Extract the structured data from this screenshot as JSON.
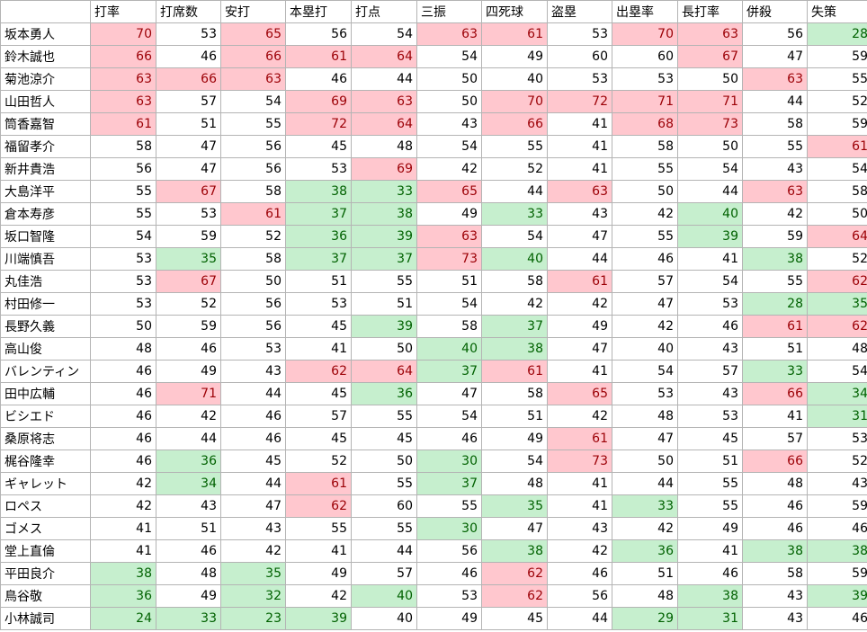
{
  "headers": [
    "",
    "打率",
    "打席数",
    "安打",
    "本塁打",
    "打点",
    "三振",
    "四死球",
    "盗塁",
    "出塁率",
    "長打率",
    "併殺",
    "失策"
  ],
  "colors": {
    "high_fill": "#ffc7ce",
    "high_text": "#9c0006",
    "low_fill": "#c6efce",
    "low_text": "#006100"
  },
  "rows": [
    {
      "name": "坂本勇人",
      "values": [
        70,
        53,
        65,
        56,
        54,
        63,
        61,
        53,
        70,
        63,
        56,
        28
      ],
      "hl": [
        "p",
        "",
        "p",
        "",
        "",
        "p",
        "p",
        "",
        "p",
        "p",
        "",
        "g"
      ]
    },
    {
      "name": "鈴木誠也",
      "values": [
        66,
        46,
        66,
        61,
        64,
        54,
        49,
        60,
        60,
        67,
        47,
        59
      ],
      "hl": [
        "p",
        "",
        "p",
        "p",
        "p",
        "",
        "",
        "",
        "",
        "p",
        "",
        ""
      ]
    },
    {
      "name": "菊池涼介",
      "values": [
        63,
        66,
        63,
        46,
        44,
        50,
        40,
        53,
        53,
        50,
        63,
        55
      ],
      "hl": [
        "p",
        "p",
        "p",
        "",
        "",
        "",
        "",
        "",
        "",
        "",
        "p",
        ""
      ]
    },
    {
      "name": "山田哲人",
      "values": [
        63,
        57,
        54,
        69,
        63,
        50,
        70,
        72,
        71,
        71,
        44,
        52
      ],
      "hl": [
        "p",
        "",
        "",
        "p",
        "p",
        "",
        "p",
        "p",
        "p",
        "p",
        "",
        ""
      ]
    },
    {
      "name": "筒香嘉智",
      "values": [
        61,
        51,
        55,
        72,
        64,
        43,
        66,
        41,
        68,
        73,
        58,
        59
      ],
      "hl": [
        "p",
        "",
        "",
        "p",
        "p",
        "",
        "p",
        "",
        "p",
        "p",
        "",
        ""
      ]
    },
    {
      "name": "福留孝介",
      "values": [
        58,
        47,
        56,
        45,
        48,
        54,
        55,
        41,
        58,
        50,
        55,
        61
      ],
      "hl": [
        "",
        "",
        "",
        "",
        "",
        "",
        "",
        "",
        "",
        "",
        "",
        "p"
      ]
    },
    {
      "name": "新井貴浩",
      "values": [
        56,
        47,
        56,
        53,
        69,
        42,
        52,
        41,
        55,
        54,
        43,
        54
      ],
      "hl": [
        "",
        "",
        "",
        "",
        "p",
        "",
        "",
        "",
        "",
        "",
        "",
        ""
      ]
    },
    {
      "name": "大島洋平",
      "values": [
        55,
        67,
        58,
        38,
        33,
        65,
        44,
        63,
        50,
        44,
        63,
        58
      ],
      "hl": [
        "",
        "p",
        "",
        "g",
        "g",
        "p",
        "",
        "p",
        "",
        "",
        "p",
        ""
      ]
    },
    {
      "name": "倉本寿彦",
      "values": [
        55,
        53,
        61,
        37,
        38,
        49,
        33,
        43,
        42,
        40,
        42,
        50
      ],
      "hl": [
        "",
        "",
        "p",
        "g",
        "g",
        "",
        "g",
        "",
        "",
        "g",
        "",
        ""
      ]
    },
    {
      "name": "坂口智隆",
      "values": [
        54,
        59,
        52,
        36,
        39,
        63,
        54,
        47,
        55,
        39,
        59,
        64
      ],
      "hl": [
        "",
        "",
        "",
        "g",
        "g",
        "p",
        "",
        "",
        "",
        "g",
        "",
        "p"
      ]
    },
    {
      "name": "川端慎吾",
      "values": [
        53,
        35,
        58,
        37,
        37,
        73,
        40,
        44,
        46,
        41,
        38,
        52
      ],
      "hl": [
        "",
        "g",
        "",
        "g",
        "g",
        "p",
        "g",
        "",
        "",
        "",
        "g",
        ""
      ]
    },
    {
      "name": "丸佳浩",
      "values": [
        53,
        67,
        50,
        51,
        55,
        51,
        58,
        61,
        57,
        54,
        55,
        62
      ],
      "hl": [
        "",
        "p",
        "",
        "",
        "",
        "",
        "",
        "p",
        "",
        "",
        "",
        "p"
      ]
    },
    {
      "name": "村田修一",
      "values": [
        53,
        52,
        56,
        53,
        51,
        54,
        42,
        42,
        47,
        53,
        28,
        35
      ],
      "hl": [
        "",
        "",
        "",
        "",
        "",
        "",
        "",
        "",
        "",
        "",
        "g",
        "g"
      ]
    },
    {
      "name": "長野久義",
      "values": [
        50,
        59,
        56,
        45,
        39,
        58,
        37,
        49,
        42,
        46,
        61,
        62
      ],
      "hl": [
        "",
        "",
        "",
        "",
        "g",
        "",
        "g",
        "",
        "",
        "",
        "p",
        "p"
      ]
    },
    {
      "name": "高山俊",
      "values": [
        48,
        46,
        53,
        41,
        50,
        40,
        38,
        47,
        40,
        43,
        51,
        48
      ],
      "hl": [
        "",
        "",
        "",
        "",
        "",
        "g",
        "g",
        "",
        "",
        "",
        "",
        ""
      ]
    },
    {
      "name": "バレンティン",
      "values": [
        46,
        49,
        43,
        62,
        64,
        37,
        61,
        41,
        54,
        57,
        33,
        54
      ],
      "hl": [
        "",
        "",
        "",
        "p",
        "p",
        "g",
        "p",
        "",
        "",
        "",
        "g",
        ""
      ]
    },
    {
      "name": "田中広輔",
      "values": [
        46,
        71,
        44,
        45,
        36,
        47,
        58,
        65,
        53,
        43,
        66,
        34
      ],
      "hl": [
        "",
        "p",
        "",
        "",
        "g",
        "",
        "",
        "p",
        "",
        "",
        "p",
        "g"
      ]
    },
    {
      "name": "ビシエド",
      "values": [
        46,
        42,
        46,
        57,
        55,
        54,
        51,
        42,
        48,
        53,
        41,
        31
      ],
      "hl": [
        "",
        "",
        "",
        "",
        "",
        "",
        "",
        "",
        "",
        "",
        "",
        "g"
      ]
    },
    {
      "name": "桑原将志",
      "values": [
        46,
        44,
        46,
        45,
        45,
        46,
        49,
        61,
        47,
        45,
        57,
        53
      ],
      "hl": [
        "",
        "",
        "",
        "",
        "",
        "",
        "",
        "p",
        "",
        "",
        "",
        ""
      ]
    },
    {
      "name": "梶谷隆幸",
      "values": [
        46,
        36,
        45,
        52,
        50,
        30,
        54,
        73,
        50,
        51,
        66,
        52
      ],
      "hl": [
        "",
        "g",
        "",
        "",
        "",
        "g",
        "",
        "p",
        "",
        "",
        "p",
        ""
      ]
    },
    {
      "name": "ギャレット",
      "values": [
        42,
        34,
        44,
        61,
        55,
        37,
        48,
        41,
        44,
        55,
        48,
        43
      ],
      "hl": [
        "",
        "g",
        "",
        "p",
        "",
        "g",
        "",
        "",
        "",
        "",
        "",
        ""
      ]
    },
    {
      "name": "ロペス",
      "values": [
        42,
        43,
        47,
        62,
        60,
        55,
        35,
        41,
        33,
        55,
        46,
        59
      ],
      "hl": [
        "",
        "",
        "",
        "p",
        "",
        "",
        "g",
        "",
        "g",
        "",
        "",
        ""
      ]
    },
    {
      "name": "ゴメス",
      "values": [
        41,
        51,
        43,
        55,
        55,
        30,
        47,
        43,
        42,
        49,
        46,
        46
      ],
      "hl": [
        "",
        "",
        "",
        "",
        "",
        "g",
        "",
        "",
        "",
        "",
        "",
        ""
      ]
    },
    {
      "name": "堂上直倫",
      "values": [
        41,
        46,
        42,
        41,
        44,
        56,
        38,
        42,
        36,
        41,
        38,
        38
      ],
      "hl": [
        "",
        "",
        "",
        "",
        "",
        "",
        "g",
        "",
        "g",
        "",
        "g",
        "g"
      ]
    },
    {
      "name": "平田良介",
      "values": [
        38,
        48,
        35,
        49,
        57,
        46,
        62,
        46,
        51,
        46,
        58,
        59
      ],
      "hl": [
        "g",
        "",
        "g",
        "",
        "",
        "",
        "p",
        "",
        "",
        "",
        "",
        ""
      ]
    },
    {
      "name": "鳥谷敬",
      "values": [
        36,
        49,
        32,
        42,
        40,
        53,
        62,
        56,
        48,
        38,
        43,
        39
      ],
      "hl": [
        "g",
        "",
        "g",
        "",
        "g",
        "",
        "p",
        "",
        "",
        "g",
        "",
        "g"
      ]
    },
    {
      "name": "小林誠司",
      "values": [
        24,
        33,
        23,
        39,
        40,
        49,
        45,
        44,
        29,
        31,
        43,
        46
      ],
      "hl": [
        "g",
        "g",
        "g",
        "g",
        "",
        "",
        "",
        "",
        "g",
        "g",
        "",
        ""
      ]
    }
  ]
}
